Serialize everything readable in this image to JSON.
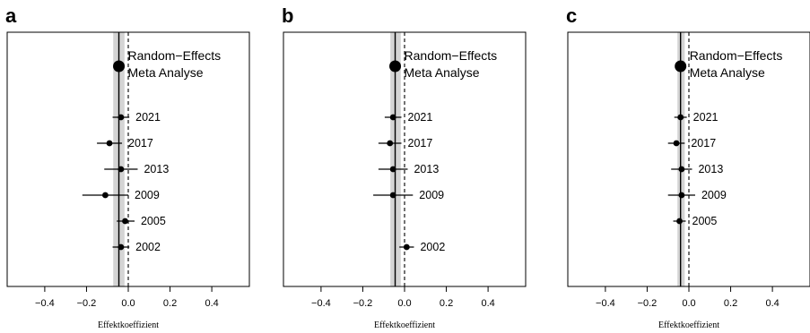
{
  "chart_data": [
    {
      "type": "forest",
      "panel_label": "a",
      "xlabel": "Effektkoeffizient",
      "xlim": [
        -0.58,
        0.58
      ],
      "xticks": [
        -0.4,
        -0.2,
        0.0,
        0.2,
        0.4
      ],
      "xtick_labels": [
        "−0.4",
        "−0.2",
        "0.0",
        "0.2",
        "0.4"
      ],
      "reference_line": 0.0,
      "meta": {
        "label_line1": "Random−Effects",
        "label_line2": "Meta Analyse",
        "estimate": -0.045,
        "ci_low": -0.072,
        "ci_high": -0.018
      },
      "studies": [
        {
          "year": "2021",
          "estimate": -0.035,
          "ci_low": -0.075,
          "ci_high": 0.005
        },
        {
          "year": "2017",
          "estimate": -0.09,
          "ci_low": -0.15,
          "ci_high": -0.03
        },
        {
          "year": "2013",
          "estimate": -0.035,
          "ci_low": -0.115,
          "ci_high": 0.045
        },
        {
          "year": "2009",
          "estimate": -0.11,
          "ci_low": -0.22,
          "ci_high": 0.0
        },
        {
          "year": "2005",
          "estimate": -0.015,
          "ci_low": -0.055,
          "ci_high": 0.03
        },
        {
          "year": "2002",
          "estimate": -0.035,
          "ci_low": -0.075,
          "ci_high": 0.005
        }
      ]
    },
    {
      "type": "forest",
      "panel_label": "b",
      "xlabel": "Effektkoeffizient",
      "xlim": [
        -0.58,
        0.58
      ],
      "xticks": [
        -0.4,
        -0.2,
        0.0,
        0.2,
        0.4
      ],
      "xtick_labels": [
        "−0.4",
        "−0.2",
        "0.0",
        "0.2",
        "0.4"
      ],
      "reference_line": 0.0,
      "meta": {
        "label_line1": "Random−Effects",
        "label_line2": "Meta Analyse",
        "estimate": -0.045,
        "ci_low": -0.068,
        "ci_high": -0.018
      },
      "studies": [
        {
          "year": "2021",
          "estimate": -0.055,
          "ci_low": -0.095,
          "ci_high": -0.015
        },
        {
          "year": "2017",
          "estimate": -0.07,
          "ci_low": -0.125,
          "ci_high": -0.015
        },
        {
          "year": "2013",
          "estimate": -0.055,
          "ci_low": -0.125,
          "ci_high": 0.015
        },
        {
          "year": "2009",
          "estimate": -0.055,
          "ci_low": -0.15,
          "ci_high": 0.04
        },
        {
          "year": "2002",
          "estimate": 0.01,
          "ci_low": -0.025,
          "ci_high": 0.045
        }
      ],
      "study_rows": [
        0,
        1,
        2,
        3,
        5
      ]
    },
    {
      "type": "forest",
      "panel_label": "c",
      "xlabel": "Effektkoeffizient",
      "xlim": [
        -0.58,
        0.58
      ],
      "xticks": [
        -0.4,
        -0.2,
        0.0,
        0.2,
        0.4
      ],
      "xtick_labels": [
        "−0.4",
        "−0.2",
        "0.0",
        "0.2",
        "0.4"
      ],
      "reference_line": 0.0,
      "meta": {
        "label_line1": "Random−Effects",
        "label_line2": "Meta Analyse",
        "estimate": -0.04,
        "ci_low": -0.055,
        "ci_high": -0.02
      },
      "studies": [
        {
          "year": "2021",
          "estimate": -0.04,
          "ci_low": -0.07,
          "ci_high": -0.01
        },
        {
          "year": "2017",
          "estimate": -0.06,
          "ci_low": -0.1,
          "ci_high": -0.02
        },
        {
          "year": "2013",
          "estimate": -0.035,
          "ci_low": -0.085,
          "ci_high": 0.015
        },
        {
          "year": "2009",
          "estimate": -0.035,
          "ci_low": -0.1,
          "ci_high": 0.03
        },
        {
          "year": "2005",
          "estimate": -0.045,
          "ci_low": -0.075,
          "ci_high": -0.015
        }
      ]
    }
  ]
}
